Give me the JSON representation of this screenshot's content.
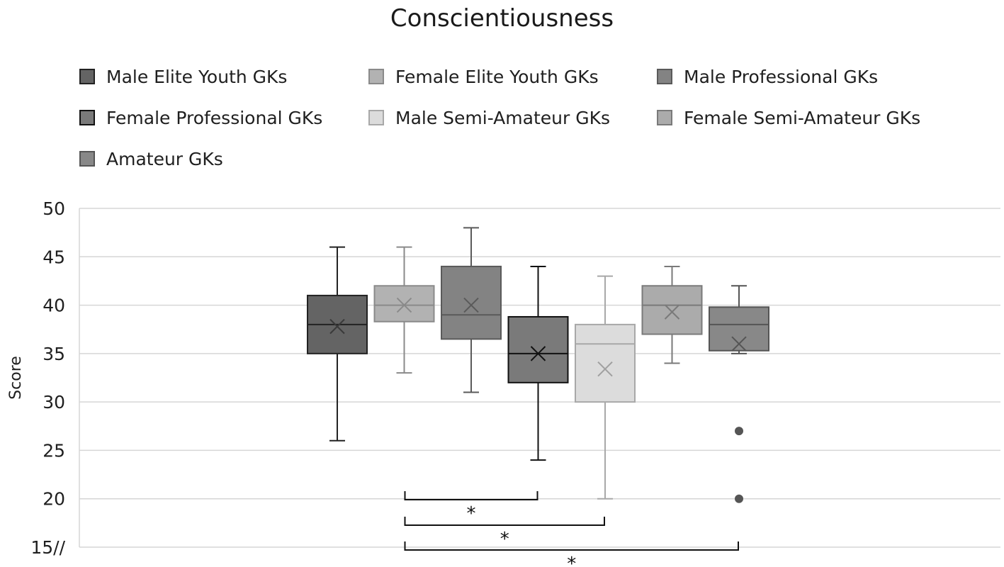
{
  "chart_data": {
    "type": "box",
    "title": "Conscientiousness",
    "ylabel": "Score",
    "xlabel": "",
    "ylim": [
      15,
      50
    ],
    "yticks": [
      {
        "value": 15,
        "label": "15//"
      },
      {
        "value": 20,
        "label": "20"
      },
      {
        "value": 25,
        "label": "25"
      },
      {
        "value": 30,
        "label": "30"
      },
      {
        "value": 35,
        "label": "35"
      },
      {
        "value": 40,
        "label": "40"
      },
      {
        "value": 45,
        "label": "45"
      },
      {
        "value": 50,
        "label": "50"
      }
    ],
    "grid": true,
    "legend_position": "top",
    "series": [
      {
        "name": "Male Elite Youth GKs",
        "fill": "#646464",
        "stroke": "#222222",
        "mean_color": "#3a3a3a",
        "min": 26,
        "q1": 35,
        "median": 38,
        "q3": 41,
        "max": 46,
        "mean": 37.8,
        "outliers": []
      },
      {
        "name": "Female Elite Youth GKs",
        "fill": "#b2b2b2",
        "stroke": "#8a8a8a",
        "mean_color": "#8a8a8a",
        "min": 33,
        "q1": 38.3,
        "median": 40,
        "q3": 42,
        "max": 46,
        "mean": 40,
        "outliers": []
      },
      {
        "name": "Male Professional GKs",
        "fill": "#838383",
        "stroke": "#5a5a5a",
        "mean_color": "#5a5a5a",
        "min": 31,
        "q1": 36.5,
        "median": 39,
        "q3": 44,
        "max": 48,
        "mean": 40,
        "outliers": []
      },
      {
        "name": "Female Professional GKs",
        "fill": "#7a7a7a",
        "stroke": "#111111",
        "mean_color": "#111111",
        "min": 24,
        "q1": 32,
        "median": 35,
        "q3": 38.8,
        "max": 44,
        "mean": 35,
        "outliers": []
      },
      {
        "name": "Male Semi-Amateur GKs",
        "fill": "#dcdcdc",
        "stroke": "#a8a8a8",
        "mean_color": "#a0a0a0",
        "min": 20,
        "q1": 30,
        "median": 36,
        "q3": 38,
        "max": 43,
        "mean": 33.4,
        "outliers": []
      },
      {
        "name": "Female Semi-Amateur GKs",
        "fill": "#ababab",
        "stroke": "#7a7a7a",
        "mean_color": "#7a7a7a",
        "min": 34,
        "q1": 37,
        "median": 40,
        "q3": 42,
        "max": 44,
        "mean": 39.3,
        "outliers": []
      },
      {
        "name": "Amateur GKs",
        "fill": "#888888",
        "stroke": "#555555",
        "mean_color": "#555555",
        "min": 35,
        "q1": 35.3,
        "median": 38,
        "q3": 39.8,
        "max": 42,
        "mean": 36,
        "outliers": [
          27,
          20
        ]
      }
    ],
    "significance": [
      {
        "from": 1,
        "to": 3,
        "label": "*"
      },
      {
        "from": 1,
        "to": 4,
        "label": "*"
      },
      {
        "from": 1,
        "to": 6,
        "label": "*"
      }
    ]
  }
}
